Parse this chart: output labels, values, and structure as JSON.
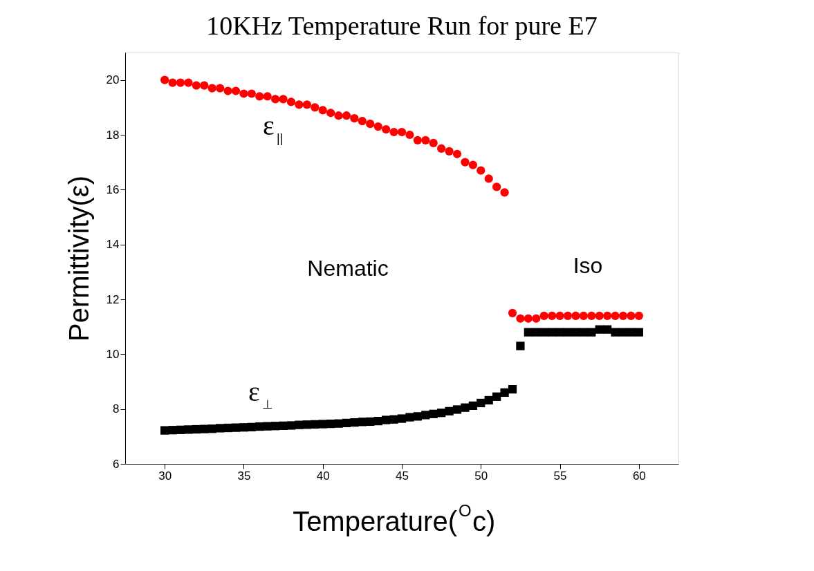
{
  "chart_data": {
    "type": "scatter",
    "title": "10KHz Temperature Run for pure E7",
    "xlabel": "Temperature($^{O}$c)",
    "ylabel": "Permittivity(ε)",
    "xlim": [
      27.5,
      62.5
    ],
    "ylim": [
      6,
      21
    ],
    "xticks": [
      30,
      35,
      40,
      45,
      50,
      55,
      60
    ],
    "yticks": [
      6,
      8,
      10,
      12,
      14,
      16,
      18,
      20
    ],
    "grid": false,
    "series": [
      {
        "color": "#ff0000",
        "marker": "circle",
        "x": [
          30,
          30.5,
          31,
          31.5,
          32,
          32.5,
          33,
          33.5,
          34,
          34.5,
          35,
          35.5,
          36,
          36.5,
          37,
          37.5,
          38,
          38.5,
          39,
          39.5,
          40,
          40.5,
          41,
          41.5,
          42,
          42.5,
          43,
          43.5,
          44,
          44.5,
          45,
          45.5,
          46,
          46.5,
          47,
          47.5,
          48,
          48.5,
          49,
          49.5,
          50,
          50.5,
          51,
          51.5,
          52,
          52.5,
          53,
          53.5,
          54,
          54.5,
          55,
          55.5,
          56,
          56.5,
          57,
          57.5,
          58,
          58.5,
          59,
          59.5,
          60
        ],
        "values": [
          20.0,
          19.9,
          19.9,
          19.9,
          19.8,
          19.8,
          19.7,
          19.7,
          19.6,
          19.6,
          19.5,
          19.5,
          19.4,
          19.4,
          19.3,
          19.3,
          19.2,
          19.1,
          19.1,
          19.0,
          18.9,
          18.8,
          18.7,
          18.7,
          18.6,
          18.5,
          18.4,
          18.3,
          18.2,
          18.1,
          18.1,
          18.0,
          17.8,
          17.8,
          17.7,
          17.5,
          17.4,
          17.3,
          17.0,
          16.9,
          16.7,
          16.4,
          16.1,
          15.9,
          11.5,
          11.3,
          11.3,
          11.3,
          11.4,
          11.4,
          11.4,
          11.4,
          11.4,
          11.4,
          11.4,
          11.4,
          11.4,
          11.4,
          11.4,
          11.4,
          11.4
        ]
      },
      {
        "color": "#000000",
        "marker": "square",
        "x": [
          30,
          30.5,
          31,
          31.5,
          32,
          32.5,
          33,
          33.5,
          34,
          34.5,
          35,
          35.5,
          36,
          36.5,
          37,
          37.5,
          38,
          38.5,
          39,
          39.5,
          40,
          40.5,
          41,
          41.5,
          42,
          42.5,
          43,
          43.5,
          44,
          44.5,
          45,
          45.5,
          46,
          46.5,
          47,
          47.5,
          48,
          48.5,
          49,
          49.5,
          50,
          50.5,
          51,
          51.5,
          52,
          52.5,
          53,
          53.5,
          54,
          54.5,
          55,
          55.5,
          56,
          56.5,
          57,
          57.5,
          58,
          58.5,
          59,
          59.5,
          60
        ],
        "values": [
          7.22,
          7.23,
          7.24,
          7.25,
          7.26,
          7.27,
          7.28,
          7.3,
          7.31,
          7.32,
          7.33,
          7.34,
          7.36,
          7.37,
          7.38,
          7.39,
          7.4,
          7.42,
          7.43,
          7.44,
          7.45,
          7.46,
          7.47,
          7.49,
          7.51,
          7.53,
          7.54,
          7.56,
          7.6,
          7.62,
          7.65,
          7.7,
          7.73,
          7.78,
          7.82,
          7.86,
          7.92,
          7.98,
          8.05,
          8.12,
          8.22,
          8.32,
          8.45,
          8.6,
          8.72,
          10.3,
          10.8,
          10.8,
          10.8,
          10.8,
          10.8,
          10.8,
          10.8,
          10.8,
          10.8,
          10.9,
          10.9,
          10.8,
          10.8,
          10.8,
          10.8
        ]
      }
    ],
    "annotations": [
      "ε$_{||}$",
      "ε$_{⊥}$",
      "Nematic",
      "Iso"
    ]
  }
}
